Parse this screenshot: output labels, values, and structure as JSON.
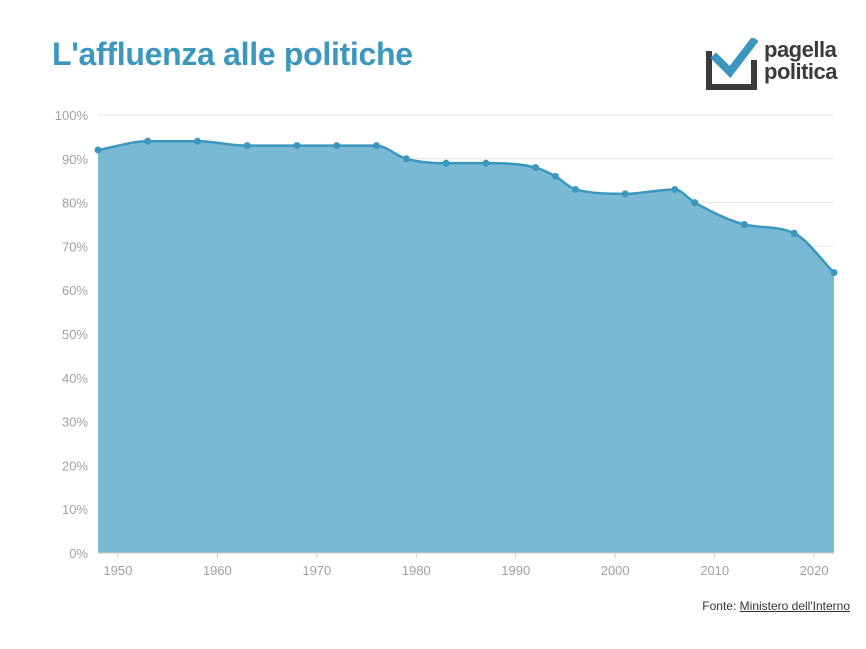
{
  "header": {
    "title": "L'affluenza alle politiche"
  },
  "logo": {
    "line1": "pagella",
    "line2": "politica",
    "icon": "checkbox-check-icon",
    "box_color": "#3b3b3b",
    "check_color": "#3c97bf"
  },
  "source": {
    "prefix": "Fonte: ",
    "link_text": "Ministero dell'Interno"
  },
  "colors": {
    "line": "#3c97bf",
    "area": "#79b9d4",
    "grid": "#e6e6e6",
    "tick_text": "#a0a0a0"
  },
  "chart_data": {
    "type": "area",
    "title": "L'affluenza alle politiche",
    "xlabel": "",
    "ylabel": "",
    "x": [
      1948,
      1953,
      1958,
      1963,
      1968,
      1972,
      1976,
      1979,
      1983,
      1987,
      1992,
      1994,
      1996,
      2001,
      2006,
      2008,
      2013,
      2018,
      2022
    ],
    "series": [
      {
        "values": [
          92,
          94,
          94,
          93,
          93,
          93,
          93,
          90,
          89,
          89,
          88,
          86,
          83,
          82,
          83,
          80,
          75,
          73,
          64
        ]
      }
    ],
    "xlim": [
      1948,
      2022
    ],
    "ylim": [
      0,
      100
    ],
    "y_ticks": [
      0,
      10,
      20,
      30,
      40,
      50,
      60,
      70,
      80,
      90,
      100
    ],
    "y_tick_labels": [
      "0%",
      "10%",
      "20%",
      "30%",
      "40%",
      "50%",
      "60%",
      "70%",
      "80%",
      "90%",
      "100%"
    ],
    "x_ticks": [
      1950,
      1960,
      1970,
      1980,
      1990,
      2000,
      2010,
      2020
    ],
    "x_tick_labels": [
      "1950",
      "1960",
      "1970",
      "1980",
      "1990",
      "2000",
      "2010",
      "2020"
    ],
    "grid": true,
    "legend": "none"
  }
}
